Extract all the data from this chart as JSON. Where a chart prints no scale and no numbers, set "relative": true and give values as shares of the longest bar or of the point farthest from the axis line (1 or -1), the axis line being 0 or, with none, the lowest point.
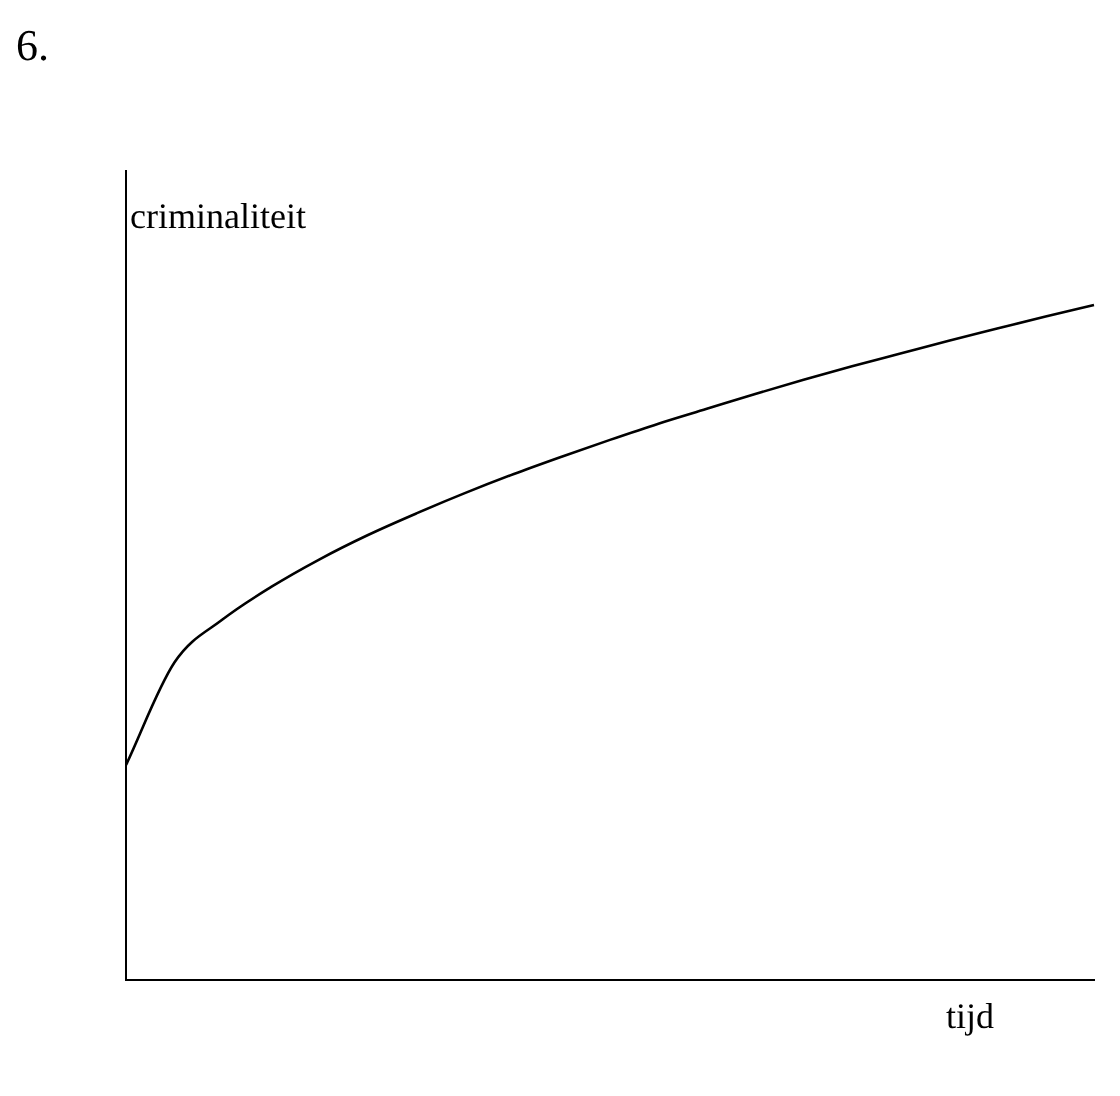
{
  "chart_data": {
    "type": "line",
    "title": "6.",
    "xlabel": "tijd",
    "ylabel": "criminaliteit",
    "relative": true,
    "categories": [
      null,
      null,
      null,
      null,
      null,
      null,
      null,
      null,
      null,
      null,
      null,
      null,
      null,
      null,
      null,
      null,
      null,
      null,
      null,
      null,
      null
    ],
    "series": [
      {
        "color": "#000000",
        "values": [
          0.318,
          0.47,
          0.534,
          0.582,
          0.623,
          0.659,
          0.691,
          0.721,
          0.749,
          0.775,
          0.8,
          0.824,
          0.846,
          0.868,
          0.889,
          0.909,
          0.928,
          0.947,
          0.965,
          0.983,
          1
        ]
      }
    ],
    "grid": false,
    "legend": false,
    "marker": "none",
    "line_style": "solid"
  }
}
